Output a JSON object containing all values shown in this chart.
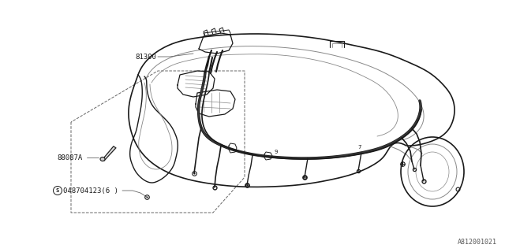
{
  "bg_color": "#ffffff",
  "line_color": "#1a1a1a",
  "mid_line_color": "#444444",
  "light_line_color": "#888888",
  "dashed_color": "#666666",
  "label_81300": "81300",
  "label_88087A": "88087A",
  "label_part": "©048704123(6 )",
  "label_diagram": "A812001021",
  "font_size_labels": 6.5,
  "font_size_diagram": 6
}
